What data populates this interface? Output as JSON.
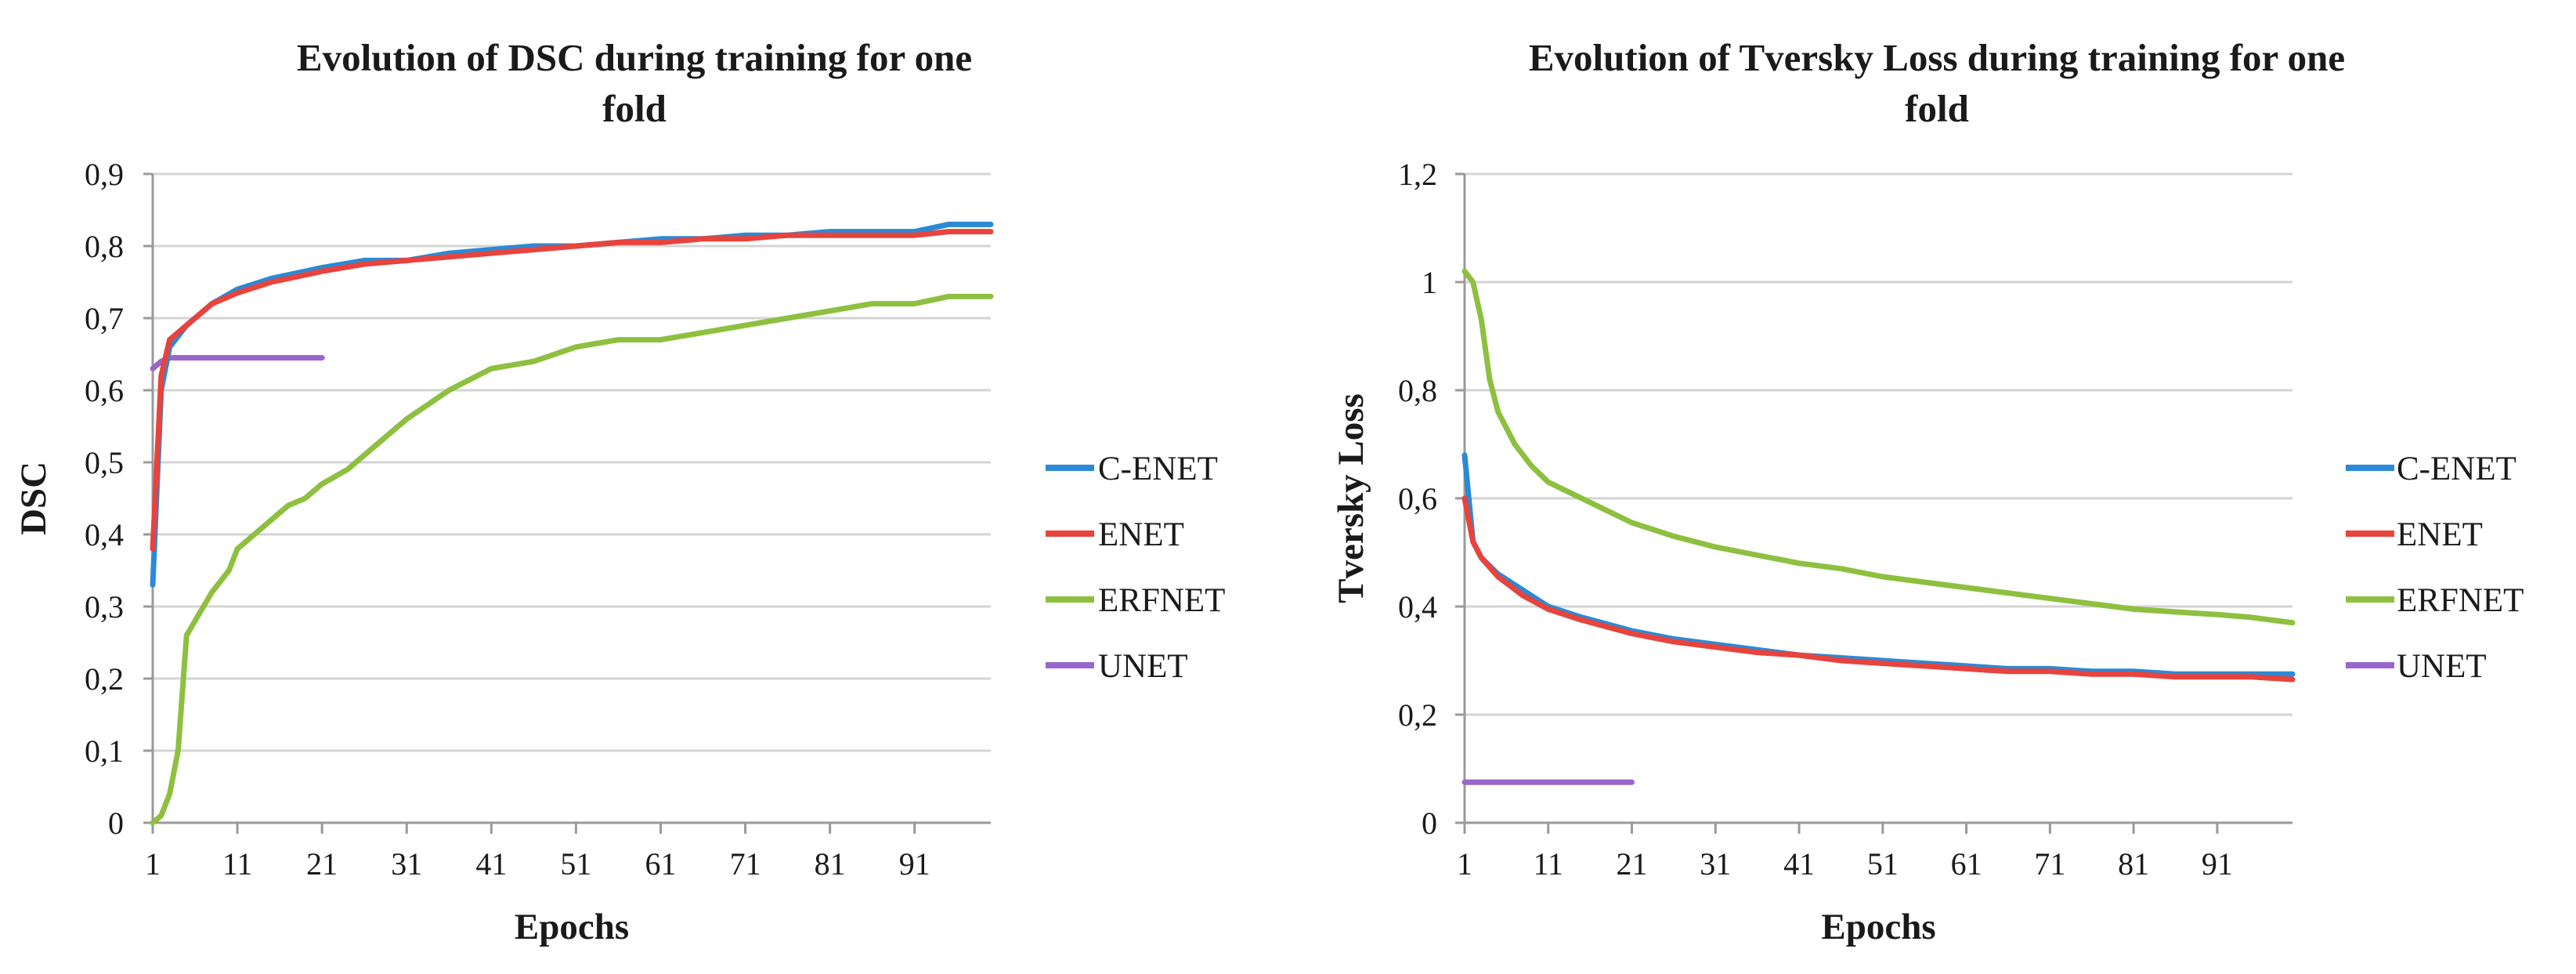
{
  "chart_data": [
    {
      "type": "line",
      "title_lines": [
        "Evolution of DSC during training for one",
        "fold"
      ],
      "xlabel": "Epochs",
      "ylabel": "DSC",
      "xlim": [
        1,
        100
      ],
      "ylim": [
        0,
        0.9
      ],
      "x_ticks": [
        1,
        11,
        21,
        31,
        41,
        51,
        61,
        71,
        81,
        91
      ],
      "y_ticks": [
        "0",
        "0,1",
        "0,2",
        "0,3",
        "0,4",
        "0,5",
        "0,6",
        "0,7",
        "0,8",
        "0,9"
      ],
      "grid": true,
      "legend_position": "right",
      "series": [
        {
          "name": "C-ENET",
          "color": "#2a8ad6",
          "points": [
            [
              1,
              0.33
            ],
            [
              2,
              0.6
            ],
            [
              3,
              0.66
            ],
            [
              5,
              0.69
            ],
            [
              8,
              0.72
            ],
            [
              11,
              0.74
            ],
            [
              15,
              0.755
            ],
            [
              21,
              0.77
            ],
            [
              26,
              0.78
            ],
            [
              31,
              0.78
            ],
            [
              36,
              0.79
            ],
            [
              41,
              0.795
            ],
            [
              46,
              0.8
            ],
            [
              51,
              0.8
            ],
            [
              56,
              0.805
            ],
            [
              61,
              0.81
            ],
            [
              66,
              0.81
            ],
            [
              71,
              0.815
            ],
            [
              76,
              0.815
            ],
            [
              81,
              0.82
            ],
            [
              86,
              0.82
            ],
            [
              91,
              0.82
            ],
            [
              95,
              0.83
            ],
            [
              100,
              0.83
            ]
          ]
        },
        {
          "name": "ENET",
          "color": "#e8433c",
          "points": [
            [
              1,
              0.38
            ],
            [
              2,
              0.62
            ],
            [
              3,
              0.67
            ],
            [
              5,
              0.69
            ],
            [
              8,
              0.72
            ],
            [
              11,
              0.735
            ],
            [
              15,
              0.75
            ],
            [
              21,
              0.765
            ],
            [
              26,
              0.775
            ],
            [
              31,
              0.78
            ],
            [
              36,
              0.785
            ],
            [
              41,
              0.79
            ],
            [
              46,
              0.795
            ],
            [
              51,
              0.8
            ],
            [
              56,
              0.805
            ],
            [
              61,
              0.805
            ],
            [
              66,
              0.81
            ],
            [
              71,
              0.81
            ],
            [
              76,
              0.815
            ],
            [
              81,
              0.815
            ],
            [
              86,
              0.815
            ],
            [
              91,
              0.815
            ],
            [
              95,
              0.82
            ],
            [
              100,
              0.82
            ]
          ]
        },
        {
          "name": "ERFNET",
          "color": "#8ec03f",
          "points": [
            [
              1,
              0.0
            ],
            [
              2,
              0.01
            ],
            [
              3,
              0.04
            ],
            [
              4,
              0.1
            ],
            [
              5,
              0.26
            ],
            [
              6,
              0.28
            ],
            [
              8,
              0.32
            ],
            [
              10,
              0.35
            ],
            [
              11,
              0.38
            ],
            [
              13,
              0.4
            ],
            [
              15,
              0.42
            ],
            [
              17,
              0.44
            ],
            [
              19,
              0.45
            ],
            [
              21,
              0.47
            ],
            [
              24,
              0.49
            ],
            [
              27,
              0.52
            ],
            [
              31,
              0.56
            ],
            [
              36,
              0.6
            ],
            [
              41,
              0.63
            ],
            [
              46,
              0.64
            ],
            [
              51,
              0.66
            ],
            [
              56,
              0.67
            ],
            [
              61,
              0.67
            ],
            [
              66,
              0.68
            ],
            [
              71,
              0.69
            ],
            [
              76,
              0.7
            ],
            [
              81,
              0.71
            ],
            [
              86,
              0.72
            ],
            [
              91,
              0.72
            ],
            [
              95,
              0.73
            ],
            [
              100,
              0.73
            ]
          ]
        },
        {
          "name": "UNET",
          "color": "#9966cc",
          "points": [
            [
              1,
              0.63
            ],
            [
              2,
              0.64
            ],
            [
              3,
              0.645
            ],
            [
              5,
              0.645
            ],
            [
              10,
              0.645
            ],
            [
              15,
              0.645
            ],
            [
              21,
              0.645
            ]
          ]
        }
      ]
    },
    {
      "type": "line",
      "title_lines": [
        "Evolution of Tversky Loss during training for one",
        "fold"
      ],
      "xlabel": "Epochs",
      "ylabel": "Tversky Loss",
      "xlim": [
        1,
        100
      ],
      "ylim": [
        0,
        1.2
      ],
      "x_ticks": [
        1,
        11,
        21,
        31,
        41,
        51,
        61,
        71,
        81,
        91
      ],
      "y_ticks": [
        "0",
        "0,2",
        "0,4",
        "0,6",
        "0,8",
        "1",
        "1,2"
      ],
      "grid": true,
      "legend_position": "right",
      "series": [
        {
          "name": "C-ENET",
          "color": "#2a8ad6",
          "points": [
            [
              1,
              0.68
            ],
            [
              2,
              0.52
            ],
            [
              3,
              0.49
            ],
            [
              5,
              0.46
            ],
            [
              8,
              0.43
            ],
            [
              11,
              0.4
            ],
            [
              15,
              0.38
            ],
            [
              21,
              0.355
            ],
            [
              26,
              0.34
            ],
            [
              31,
              0.33
            ],
            [
              36,
              0.32
            ],
            [
              41,
              0.31
            ],
            [
              46,
              0.305
            ],
            [
              51,
              0.3
            ],
            [
              56,
              0.295
            ],
            [
              61,
              0.29
            ],
            [
              66,
              0.285
            ],
            [
              71,
              0.285
            ],
            [
              76,
              0.28
            ],
            [
              81,
              0.28
            ],
            [
              86,
              0.275
            ],
            [
              91,
              0.275
            ],
            [
              95,
              0.275
            ],
            [
              100,
              0.275
            ]
          ]
        },
        {
          "name": "ENET",
          "color": "#e8433c",
          "points": [
            [
              1,
              0.6
            ],
            [
              2,
              0.52
            ],
            [
              3,
              0.49
            ],
            [
              5,
              0.455
            ],
            [
              8,
              0.42
            ],
            [
              11,
              0.395
            ],
            [
              15,
              0.375
            ],
            [
              21,
              0.35
            ],
            [
              26,
              0.335
            ],
            [
              31,
              0.325
            ],
            [
              36,
              0.315
            ],
            [
              41,
              0.31
            ],
            [
              46,
              0.3
            ],
            [
              51,
              0.295
            ],
            [
              56,
              0.29
            ],
            [
              61,
              0.285
            ],
            [
              66,
              0.28
            ],
            [
              71,
              0.28
            ],
            [
              76,
              0.275
            ],
            [
              81,
              0.275
            ],
            [
              86,
              0.27
            ],
            [
              91,
              0.27
            ],
            [
              95,
              0.27
            ],
            [
              100,
              0.265
            ]
          ]
        },
        {
          "name": "ERFNET",
          "color": "#8ec03f",
          "points": [
            [
              1,
              1.02
            ],
            [
              2,
              1.0
            ],
            [
              3,
              0.93
            ],
            [
              4,
              0.82
            ],
            [
              5,
              0.76
            ],
            [
              7,
              0.7
            ],
            [
              9,
              0.66
            ],
            [
              11,
              0.63
            ],
            [
              15,
              0.6
            ],
            [
              21,
              0.555
            ],
            [
              26,
              0.53
            ],
            [
              31,
              0.51
            ],
            [
              36,
              0.495
            ],
            [
              41,
              0.48
            ],
            [
              46,
              0.47
            ],
            [
              51,
              0.455
            ],
            [
              56,
              0.445
            ],
            [
              61,
              0.435
            ],
            [
              66,
              0.425
            ],
            [
              71,
              0.415
            ],
            [
              76,
              0.405
            ],
            [
              81,
              0.395
            ],
            [
              86,
              0.39
            ],
            [
              91,
              0.385
            ],
            [
              95,
              0.38
            ],
            [
              100,
              0.37
            ]
          ]
        },
        {
          "name": "UNET",
          "color": "#9966cc",
          "points": [
            [
              1,
              0.075
            ],
            [
              5,
              0.075
            ],
            [
              10,
              0.075
            ],
            [
              15,
              0.075
            ],
            [
              21,
              0.075
            ]
          ]
        }
      ]
    }
  ]
}
